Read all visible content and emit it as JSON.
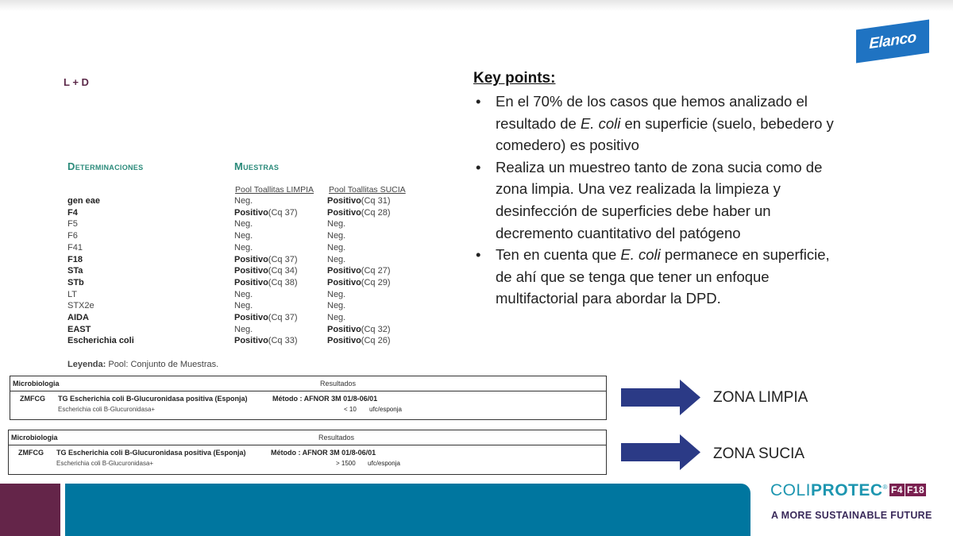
{
  "header": {
    "label": "L + D",
    "brand_logo": "Elanco"
  },
  "table": {
    "col_determinaciones": "Determinaciones",
    "col_muestras": "Muestras",
    "sub_limpia": "Pool Toallitas LIMPIA",
    "sub_sucia": "Pool Toallitas SUCIA",
    "rows": [
      {
        "name": "gen eae",
        "bold": true,
        "limpia": {
          "result": "Neg.",
          "cq": ""
        },
        "sucia": {
          "result": "Positivo",
          "cq": "(Cq 31)"
        }
      },
      {
        "name": "F4",
        "bold": true,
        "limpia": {
          "result": "Positivo",
          "cq": "(Cq 37)"
        },
        "sucia": {
          "result": "Positivo",
          "cq": "(Cq 28)"
        }
      },
      {
        "name": "F5",
        "bold": false,
        "limpia": {
          "result": "Neg.",
          "cq": ""
        },
        "sucia": {
          "result": "Neg.",
          "cq": ""
        }
      },
      {
        "name": "F6",
        "bold": false,
        "limpia": {
          "result": "Neg.",
          "cq": ""
        },
        "sucia": {
          "result": "Neg.",
          "cq": ""
        }
      },
      {
        "name": "F41",
        "bold": false,
        "limpia": {
          "result": "Neg.",
          "cq": ""
        },
        "sucia": {
          "result": "Neg.",
          "cq": ""
        }
      },
      {
        "name": "F18",
        "bold": true,
        "limpia": {
          "result": "Positivo",
          "cq": "(Cq 37)"
        },
        "sucia": {
          "result": "Neg.",
          "cq": ""
        }
      },
      {
        "name": "STa",
        "bold": true,
        "limpia": {
          "result": "Positivo",
          "cq": "(Cq 34)"
        },
        "sucia": {
          "result": "Positivo",
          "cq": "(Cq 27)"
        }
      },
      {
        "name": "STb",
        "bold": true,
        "limpia": {
          "result": "Positivo",
          "cq": "(Cq 38)"
        },
        "sucia": {
          "result": "Positivo",
          "cq": "(Cq 29)"
        }
      },
      {
        "name": "LT",
        "bold": false,
        "limpia": {
          "result": "Neg.",
          "cq": ""
        },
        "sucia": {
          "result": "Neg.",
          "cq": ""
        }
      },
      {
        "name": "STX2e",
        "bold": false,
        "limpia": {
          "result": "Neg.",
          "cq": ""
        },
        "sucia": {
          "result": "Neg.",
          "cq": ""
        }
      },
      {
        "name": "AIDA",
        "bold": true,
        "limpia": {
          "result": "Positivo",
          "cq": "(Cq 37)"
        },
        "sucia": {
          "result": "Neg.",
          "cq": ""
        }
      },
      {
        "name": "EAST",
        "bold": true,
        "limpia": {
          "result": "Neg.",
          "cq": ""
        },
        "sucia": {
          "result": "Positivo",
          "cq": "(Cq 32)"
        }
      },
      {
        "name": "Escherichia coli",
        "bold": true,
        "limpia": {
          "result": "Positivo",
          "cq": "(Cq 33)"
        },
        "sucia": {
          "result": "Positivo",
          "cq": "(Cq 26)"
        }
      }
    ],
    "legend_label": "Leyenda:",
    "legend_text": " Pool: Conjunto de Muestras."
  },
  "reports": [
    {
      "section": "Microbiologia",
      "results": "Resultados",
      "code": "ZMFCG",
      "test": "TG  Escherichia coli B-Glucuronidasa positiva (Esponja)",
      "method": "Método : AFNOR 3M 01/8-06/01",
      "analyte": "Escherichia coli B-Glucuronidasa+",
      "value": "< 10",
      "unit": "ufc/esponja",
      "zone": "ZONA LIMPIA"
    },
    {
      "section": "Microbiologia",
      "results": "Resultados",
      "code": "ZMFCG",
      "test": "TG  Escherichia coli B-Glucuronidasa positiva (Esponja)",
      "method": "Método : AFNOR 3M 01/8-06/01",
      "analyte": "Escherichia coli B-Glucuronidasa+",
      "value": "> 1500",
      "unit": "ufc/esponja",
      "zone": "ZONA SUCIA"
    }
  ],
  "key_points": {
    "title": "Key points:",
    "bullets": [
      [
        {
          "t": "En el 70% de los casos que hemos analizado el resultado de "
        },
        {
          "t": "E. coli",
          "i": true
        },
        {
          "t": " en superficie (suelo, bebedero y comedero) es positivo"
        }
      ],
      [
        {
          "t": "Realiza un muestreo tanto de zona sucia como de zona limpia. Una vez realizada la limpieza y desinfección de superficies debe haber un decremento cuantitativo del patógeno"
        }
      ],
      [
        {
          "t": "Ten en cuenta que "
        },
        {
          "t": "E. coli",
          "i": true
        },
        {
          "t": " permanece en superficie, de ahí que se tenga que tener un enfoque multifactorial para abordar la DPD."
        }
      ]
    ]
  },
  "footer": {
    "brand_light": "COLI",
    "brand_bold": "PROTEC",
    "reg": "®",
    "badge_f4": "F4",
    "badge_f18": "F18",
    "tagline": "A MORE SUSTAINABLE FUTURE"
  },
  "colors": {
    "arrow": "#2b3a86",
    "maroon": "#642549",
    "teal": "#00769f",
    "elanco_blue": "#1f73c2"
  }
}
